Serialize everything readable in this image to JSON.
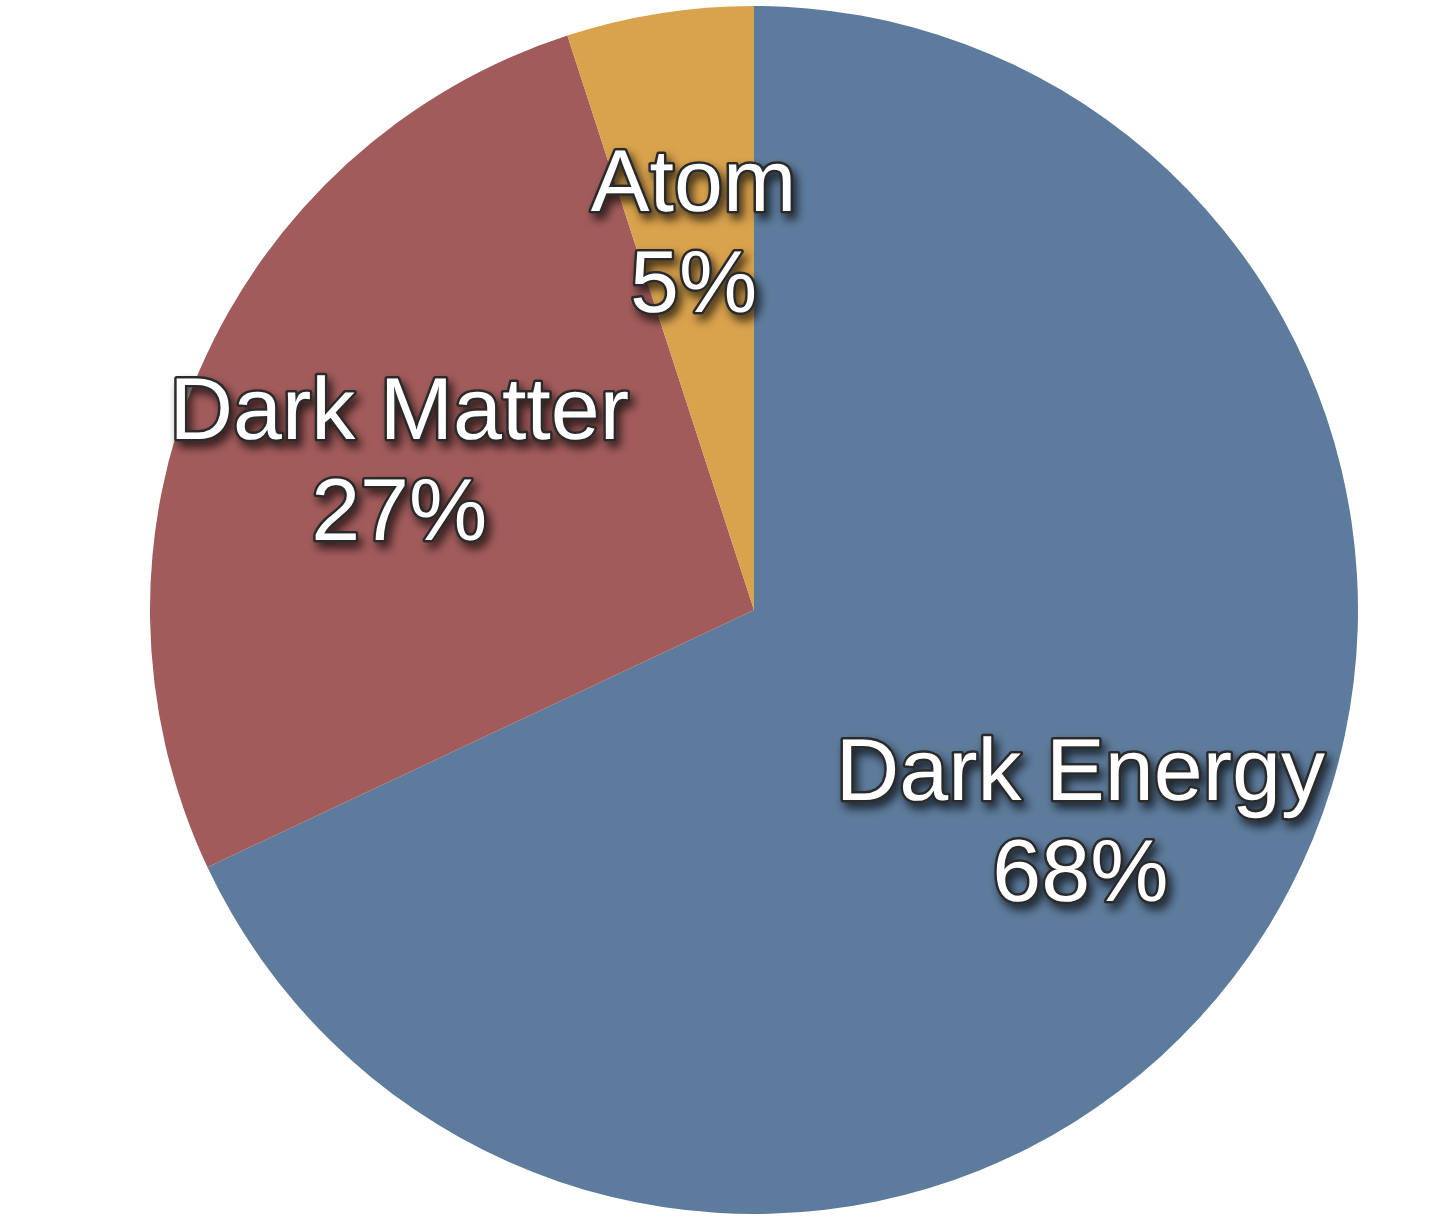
{
  "chart_data": {
    "type": "pie",
    "categories": [
      "Dark Energy",
      "Dark Matter",
      "Atom"
    ],
    "values": [
      68,
      27,
      5
    ],
    "colors": [
      "#5d7b9c",
      "#a25b5b",
      "#d9a24c"
    ],
    "value_labels": [
      "68%",
      "27%",
      "5%"
    ]
  }
}
